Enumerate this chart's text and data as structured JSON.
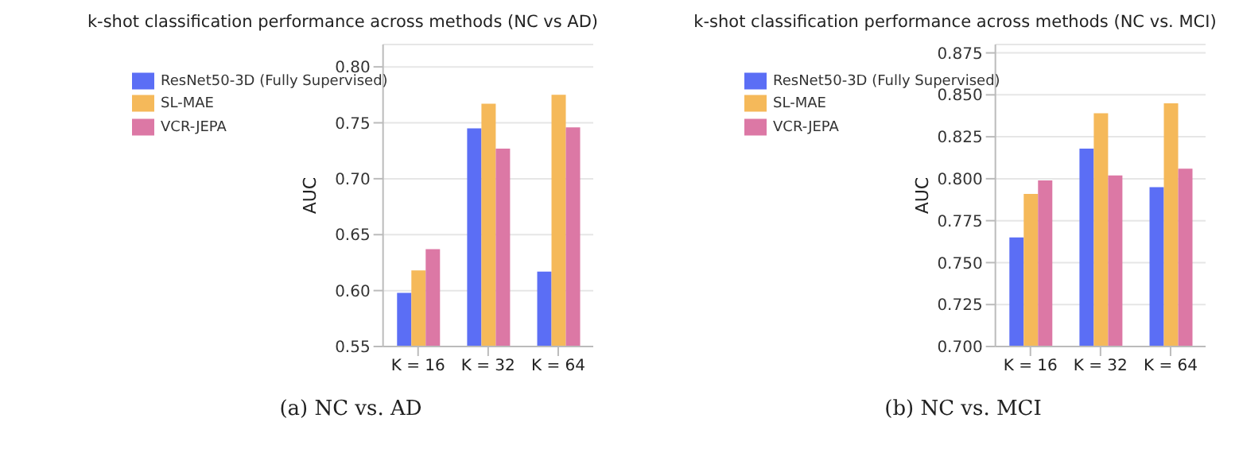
{
  "chart_data": [
    {
      "type": "bar",
      "title": "k-shot classification performance across methods (NC vs AD)",
      "ylabel": "AUC",
      "categories": [
        "K = 16",
        "K = 32",
        "K = 64"
      ],
      "series": [
        {
          "name": "ResNet50-3D (Fully Supervised)",
          "color": "#5b6ef5",
          "values": [
            0.598,
            0.745,
            0.617
          ]
        },
        {
          "name": "SL-MAE",
          "color": "#f5b95a",
          "values": [
            0.618,
            0.767,
            0.775
          ]
        },
        {
          "name": "VCR-JEPA",
          "color": "#dc78a5",
          "values": [
            0.637,
            0.727,
            0.746
          ]
        }
      ],
      "ylim": [
        0.55,
        0.82
      ],
      "yticks": [
        {
          "value": 0.55,
          "label": "0.55"
        },
        {
          "value": 0.6,
          "label": "0.60"
        },
        {
          "value": 0.65,
          "label": "0.65"
        },
        {
          "value": 0.7,
          "label": "0.70"
        },
        {
          "value": 0.75,
          "label": "0.75"
        },
        {
          "value": 0.8,
          "label": "0.80"
        }
      ],
      "grid": "y",
      "legend": "top left",
      "annotations": [
        "(a) NC vs. AD"
      ]
    },
    {
      "type": "bar",
      "title": "k-shot classification performance across methods (NC vs. MCI)",
      "ylabel": "AUC",
      "categories": [
        "K = 16",
        "K = 32",
        "K = 64"
      ],
      "series": [
        {
          "name": "ResNet50-3D (Fully Supervised)",
          "color": "#5b6ef5",
          "values": [
            0.765,
            0.818,
            0.795
          ]
        },
        {
          "name": "SL-MAE",
          "color": "#f5b95a",
          "values": [
            0.791,
            0.839,
            0.845
          ]
        },
        {
          "name": "VCR-JEPA",
          "color": "#dc78a5",
          "values": [
            0.799,
            0.802,
            0.806
          ]
        }
      ],
      "ylim": [
        0.7,
        0.88
      ],
      "yticks": [
        {
          "value": 0.7,
          "label": "0.700"
        },
        {
          "value": 0.725,
          "label": "0.725"
        },
        {
          "value": 0.75,
          "label": "0.750"
        },
        {
          "value": 0.775,
          "label": "0.775"
        },
        {
          "value": 0.8,
          "label": "0.800"
        },
        {
          "value": 0.825,
          "label": "0.825"
        },
        {
          "value": 0.85,
          "label": "0.850"
        },
        {
          "value": 0.875,
          "label": "0.875"
        }
      ],
      "grid": "y",
      "legend": "top left",
      "annotations": [
        "(b) NC vs. MCI"
      ]
    }
  ]
}
